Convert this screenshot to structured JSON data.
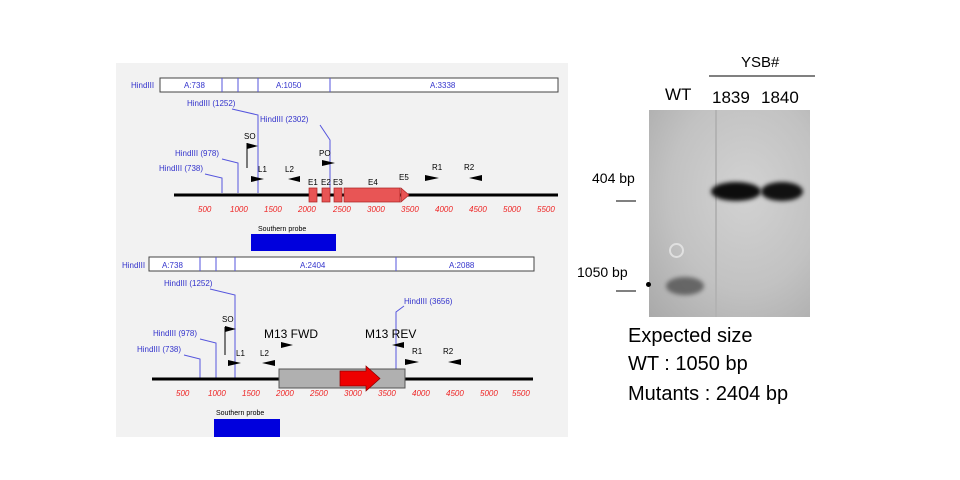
{
  "map1": {
    "enzyme": "HindIII",
    "fragments": [
      "A:738",
      "A:1050",
      "A:3338"
    ],
    "sites": [
      "HindIII (1252)",
      "HindIII (2302)",
      "HindIII (978)",
      "HindIII (738)"
    ],
    "primers": [
      "SO",
      "L1",
      "L2",
      "PO",
      "R1",
      "R2"
    ],
    "exons": [
      "E1",
      "E2",
      "E3",
      "E4",
      "E5"
    ],
    "ticks": [
      "500",
      "1000",
      "1500",
      "2000",
      "2500",
      "3000",
      "3500",
      "4000",
      "4500",
      "5000",
      "5500"
    ],
    "probe": "Southern probe"
  },
  "map2": {
    "enzyme": "HindIII",
    "fragments": [
      "A:738",
      "A:2404",
      "A:2088"
    ],
    "sites": [
      "HindIII (1252)",
      "HindIII (978)",
      "HindIII (738)",
      "HindIII (3656)"
    ],
    "primers": [
      "SO",
      "L1",
      "L2",
      "R1",
      "R2"
    ],
    "m13": [
      "M13 FWD",
      "M13 REV"
    ],
    "ticks": [
      "500",
      "1000",
      "1500",
      "2000",
      "2500",
      "3000",
      "3500",
      "4000",
      "4500",
      "5000",
      "5500"
    ],
    "probe": "Southern probe"
  },
  "gel": {
    "group_label": "YSB#",
    "lanes": [
      "WT",
      "1839",
      "1840"
    ],
    "markers": [
      "404 bp",
      "1050 bp"
    ]
  },
  "expected": {
    "title": "Expected size",
    "wt": "WT : 1050 bp",
    "mutants": "Mutants : 2404 bp"
  }
}
